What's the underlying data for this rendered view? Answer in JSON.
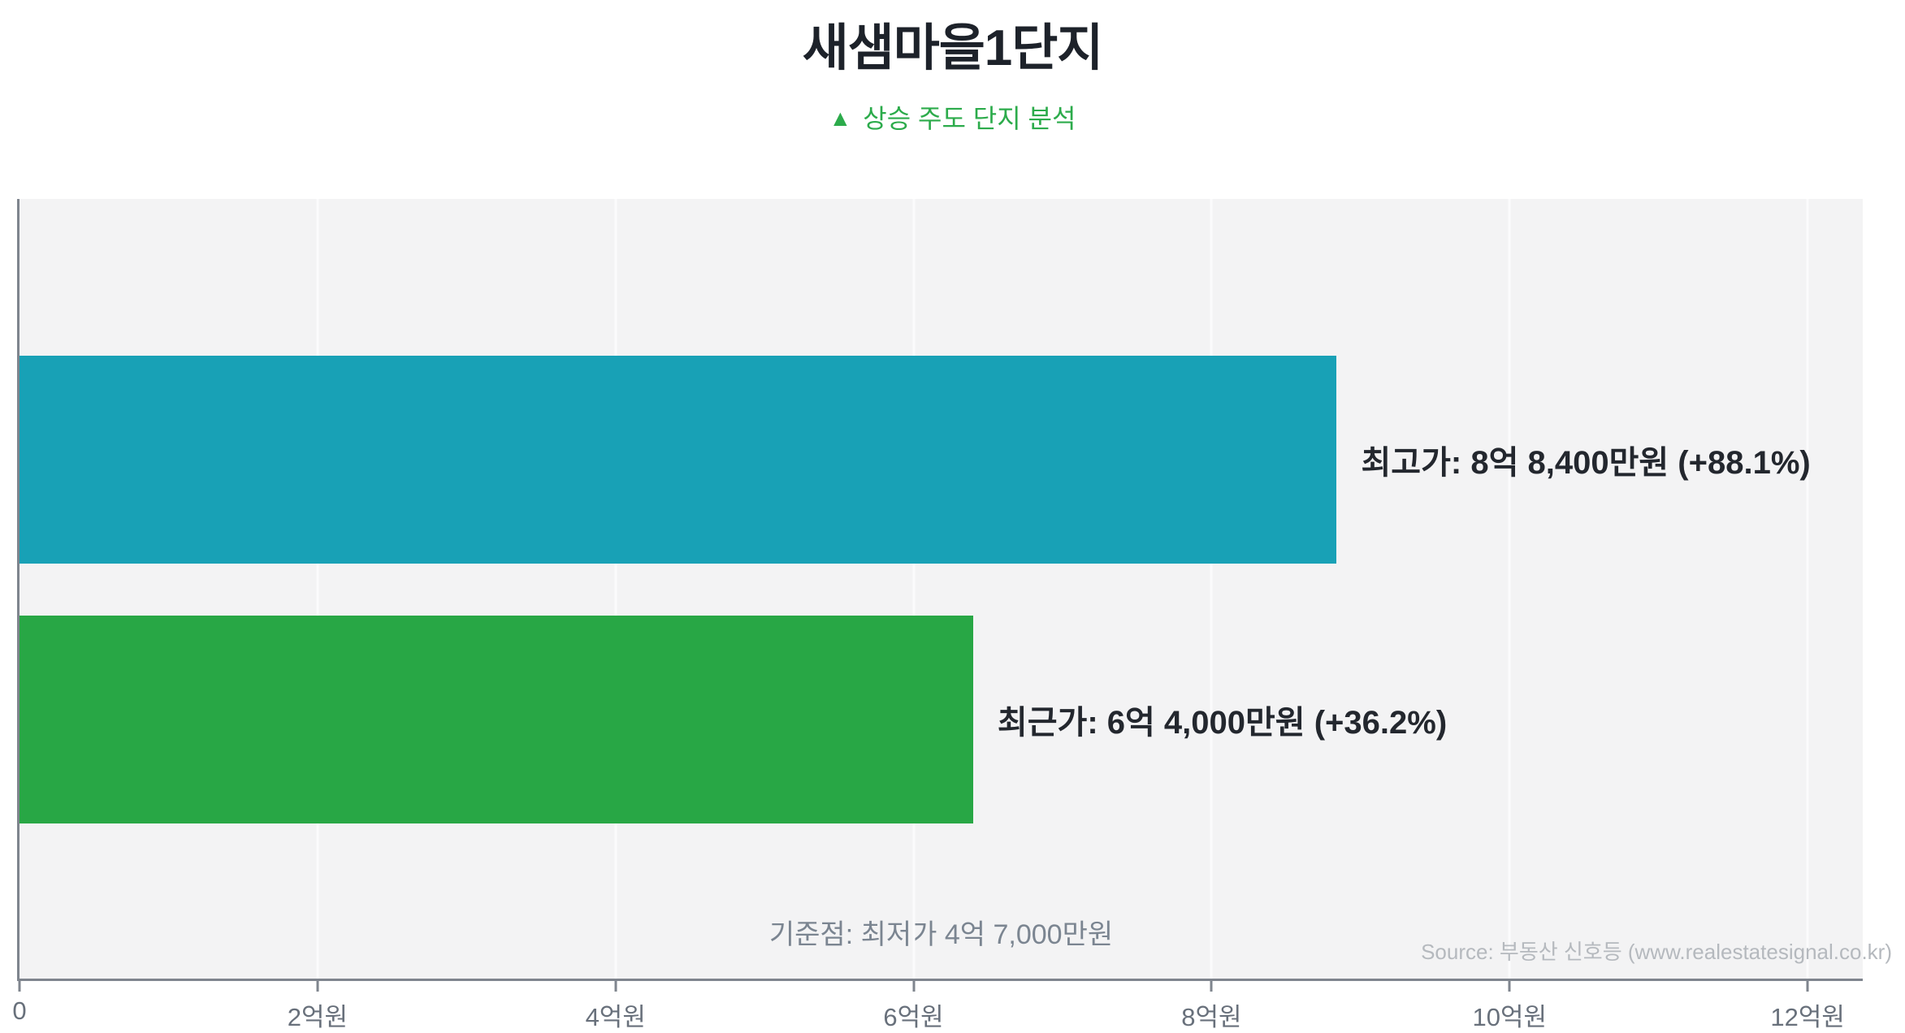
{
  "header": {
    "title": "새샘마을1단지",
    "subtitle": "상승 주도 단지 분석",
    "subtitle_icon": "up-triangle-icon",
    "subtitle_color": "#2cab4b"
  },
  "chart_data": {
    "type": "bar",
    "orientation": "horizontal",
    "title": "새샘마을1단지",
    "subtitle": "▲ 상승 주도 단지 분석",
    "categories": [
      "최고가",
      "최근가"
    ],
    "values": [
      8.84,
      6.4
    ],
    "value_unit": "억원",
    "bar_labels": [
      "최고가: 8억 8,400만원 (+88.1%)",
      "최근가: 6억 4,000만원 (+36.2%)"
    ],
    "bar_colors": [
      "#18a1b6",
      "#28a745"
    ],
    "xlim": [
      0,
      12.37
    ],
    "xticks": [
      {
        "value": 0,
        "label": "0"
      },
      {
        "value": 2,
        "label": "2억원"
      },
      {
        "value": 4,
        "label": "4억원"
      },
      {
        "value": 6,
        "label": "6억원"
      },
      {
        "value": 8,
        "label": "8억원"
      },
      {
        "value": 10,
        "label": "10억원"
      },
      {
        "value": 12,
        "label": "12억원"
      }
    ],
    "grid": true,
    "legend": "none",
    "plot_background": "#f3f3f4",
    "baseline_note": "기준점: 최저가 4억 7,000만원",
    "baseline_value": 4.7
  },
  "footer": {
    "source": "Source: 부동산 신호등 (www.realestatesignal.co.kr)"
  }
}
